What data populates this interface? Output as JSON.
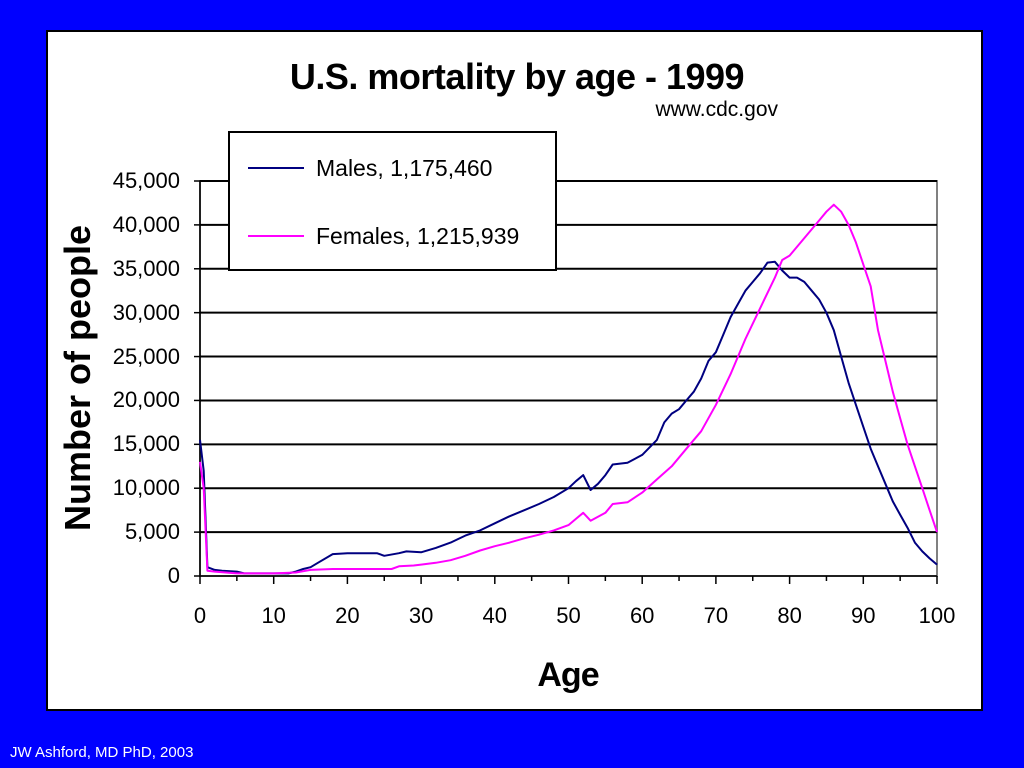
{
  "footer": "JW Ashford, MD PhD, 2003",
  "colors": {
    "background": "#0000ff",
    "males": "#000080",
    "females": "#ff00ff"
  },
  "chart_data": {
    "type": "line",
    "title": "U.S. mortality by age - 1999",
    "subtitle": "www.cdc.gov",
    "xlabel": "Age",
    "ylabel": "Number of people",
    "xlim": [
      0,
      100
    ],
    "ylim": [
      0,
      45000
    ],
    "grid": true,
    "legend_position": "top-left",
    "x_ticks": [
      "0",
      "10",
      "20",
      "30",
      "40",
      "50",
      "60",
      "70",
      "80",
      "90",
      "100"
    ],
    "y_ticks": [
      "0",
      "5,000",
      "10,000",
      "15,000",
      "20,000",
      "25,000",
      "30,000",
      "35,000",
      "40,000",
      "45,000"
    ],
    "series": [
      {
        "name": "Males, 1,175,460",
        "color": "#000080",
        "x": [
          0,
          0.5,
          1,
          2,
          3,
          5,
          6,
          7,
          10,
          12,
          13,
          14,
          15,
          16,
          18,
          20,
          22,
          24,
          25,
          27,
          28,
          30,
          32,
          34,
          35,
          36,
          38,
          40,
          42,
          44,
          46,
          48,
          50,
          51,
          52,
          53,
          54,
          55,
          56,
          57,
          58,
          60,
          62,
          63,
          64,
          65,
          66,
          67,
          68,
          69,
          70,
          71,
          72,
          73,
          74,
          75,
          76,
          77,
          78,
          79,
          80,
          81,
          82,
          83,
          84,
          85,
          86,
          87,
          88,
          89,
          90,
          91,
          92,
          93,
          94,
          95,
          96,
          97,
          98,
          99,
          100
        ],
        "y": [
          15500,
          12000,
          1000,
          700,
          600,
          500,
          300,
          300,
          300,
          300,
          500,
          800,
          1000,
          1500,
          2500,
          2600,
          2600,
          2600,
          2300,
          2600,
          2800,
          2700,
          3200,
          3800,
          4200,
          4600,
          5200,
          6000,
          6800,
          7500,
          8200,
          9000,
          10000,
          10800,
          11500,
          9800,
          10500,
          11500,
          12700,
          12800,
          12900,
          13800,
          15500,
          17500,
          18500,
          19000,
          20000,
          21000,
          22500,
          24500,
          25500,
          27500,
          29500,
          31000,
          32500,
          33500,
          34500,
          35700,
          35800,
          34800,
          34000,
          34000,
          33500,
          32500,
          31500,
          30000,
          28000,
          25000,
          22000,
          19500,
          17000,
          14500,
          12500,
          10500,
          8500,
          7000,
          5500,
          3800,
          2800,
          2000,
          1300
        ]
      },
      {
        "name": "Females, 1,215,939",
        "color": "#ff00ff",
        "x": [
          0,
          0.5,
          1,
          2,
          5,
          10,
          13,
          15,
          18,
          20,
          24,
          26,
          27,
          29,
          30,
          32,
          34,
          36,
          38,
          40,
          42,
          44,
          46,
          48,
          50,
          51,
          52,
          53,
          55,
          56,
          58,
          60,
          62,
          64,
          66,
          68,
          70,
          72,
          74,
          76,
          78,
          79,
          80,
          82,
          84,
          85,
          86,
          87,
          88,
          89,
          90,
          91,
          92,
          93,
          94,
          95,
          96,
          97,
          98,
          99,
          100
        ],
        "y": [
          13000,
          10000,
          600,
          500,
          300,
          300,
          400,
          700,
          800,
          800,
          800,
          800,
          1100,
          1200,
          1300,
          1500,
          1800,
          2300,
          2900,
          3400,
          3800,
          4300,
          4700,
          5200,
          5800,
          6500,
          7200,
          6300,
          7200,
          8200,
          8400,
          9500,
          11000,
          12500,
          14500,
          16500,
          19500,
          23000,
          27000,
          30500,
          34000,
          36000,
          36500,
          38500,
          40500,
          41500,
          42300,
          41500,
          40000,
          38000,
          35500,
          33000,
          28000,
          24500,
          21000,
          18000,
          15000,
          12500,
          10000,
          7500,
          5000
        ]
      }
    ]
  }
}
